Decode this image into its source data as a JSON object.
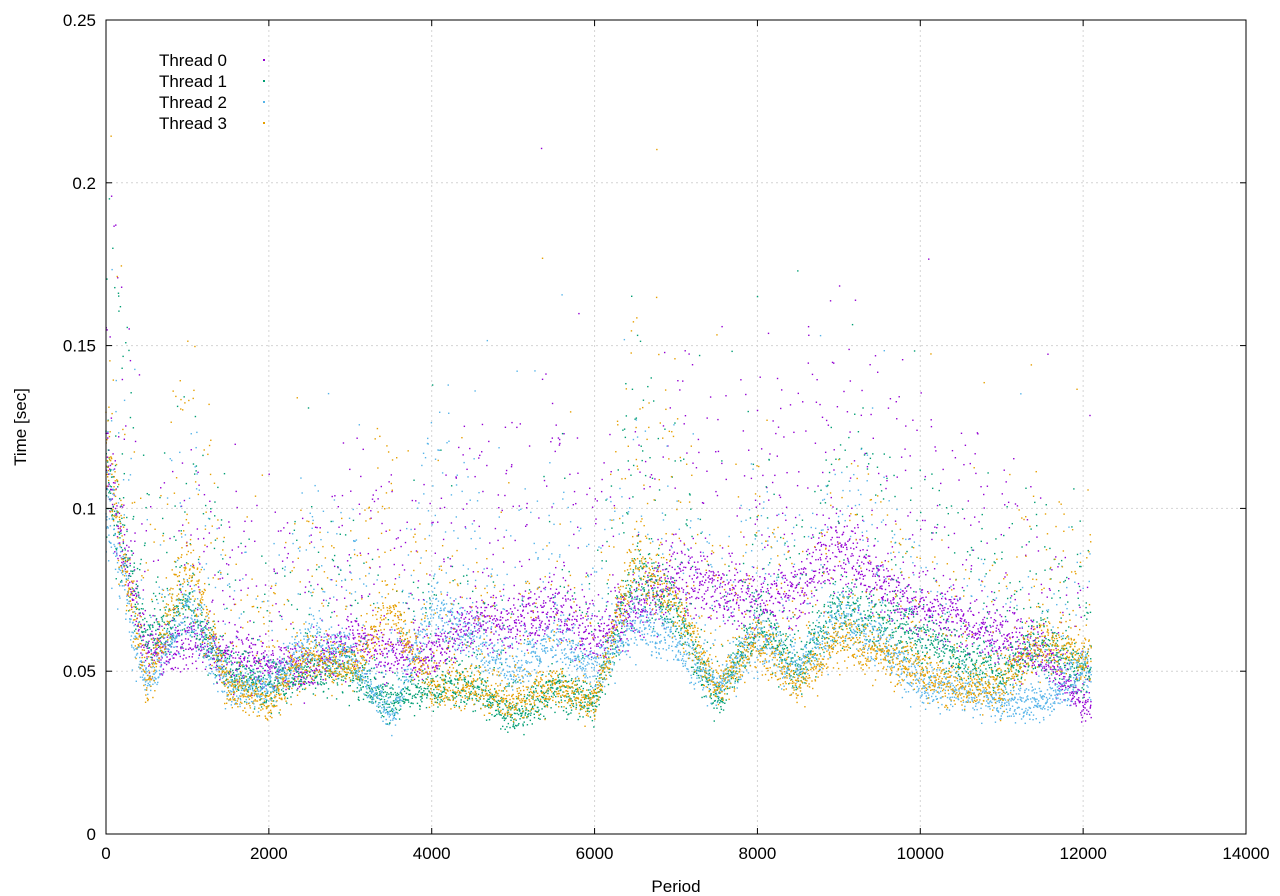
{
  "chart_data": {
    "type": "scatter",
    "title": "",
    "xlabel": "Period",
    "ylabel": "Time [sec]",
    "xlim": [
      0,
      14000
    ],
    "ylim": [
      0,
      0.25
    ],
    "x_ticks": [
      {
        "value": 0,
        "label": "0"
      },
      {
        "value": 2000,
        "label": "2000"
      },
      {
        "value": 4000,
        "label": "4000"
      },
      {
        "value": 6000,
        "label": "6000"
      },
      {
        "value": 8000,
        "label": "8000"
      },
      {
        "value": 10000,
        "label": "10000"
      },
      {
        "value": 12000,
        "label": "12000"
      },
      {
        "value": 14000,
        "label": "14000"
      }
    ],
    "y_ticks": [
      {
        "value": 0,
        "label": "0"
      },
      {
        "value": 0.05,
        "label": "0.05"
      },
      {
        "value": 0.1,
        "label": "0.1"
      },
      {
        "value": 0.15,
        "label": "0.15"
      },
      {
        "value": 0.2,
        "label": "0.2"
      },
      {
        "value": 0.25,
        "label": "0.25"
      }
    ],
    "grid": true,
    "legend_position": "top-left",
    "x_range_observed": [
      0,
      12100
    ],
    "series": [
      {
        "name": "Thread 0",
        "color": "#9400d3",
        "x": [
          0,
          500,
          1000,
          1500,
          2000,
          2500,
          3000,
          3500,
          4000,
          4500,
          5000,
          5500,
          6000,
          6500,
          7000,
          7500,
          8000,
          8500,
          9000,
          9500,
          10000,
          10500,
          11000,
          11500,
          12000
        ],
        "y": [
          0.115,
          0.055,
          0.06,
          0.055,
          0.052,
          0.05,
          0.06,
          0.055,
          0.055,
          0.065,
          0.065,
          0.07,
          0.06,
          0.07,
          0.08,
          0.075,
          0.07,
          0.075,
          0.09,
          0.075,
          0.07,
          0.065,
          0.06,
          0.055,
          0.04
        ]
      },
      {
        "name": "Thread 1",
        "color": "#009e73",
        "x": [
          0,
          500,
          1000,
          1500,
          2000,
          2500,
          3000,
          3500,
          4000,
          4500,
          5000,
          5500,
          6000,
          6500,
          7000,
          7500,
          8000,
          8500,
          9000,
          9500,
          10000,
          10500,
          11000,
          11500,
          12000
        ],
        "y": [
          0.11,
          0.06,
          0.07,
          0.05,
          0.045,
          0.05,
          0.05,
          0.04,
          0.045,
          0.045,
          0.035,
          0.045,
          0.04,
          0.08,
          0.07,
          0.04,
          0.065,
          0.05,
          0.07,
          0.065,
          0.06,
          0.055,
          0.05,
          0.06,
          0.05
        ]
      },
      {
        "name": "Thread 2",
        "color": "#56b4e9",
        "x": [
          0,
          500,
          1000,
          1500,
          2000,
          2500,
          3000,
          3500,
          4000,
          4500,
          5000,
          5500,
          6000,
          6500,
          7000,
          7500,
          8000,
          8500,
          9000,
          9500,
          10000,
          10500,
          11000,
          11500,
          12000
        ],
        "y": [
          0.1,
          0.045,
          0.07,
          0.045,
          0.045,
          0.06,
          0.055,
          0.035,
          0.07,
          0.06,
          0.05,
          0.06,
          0.05,
          0.065,
          0.06,
          0.045,
          0.06,
          0.05,
          0.065,
          0.06,
          0.045,
          0.045,
          0.04,
          0.04,
          0.05
        ]
      },
      {
        "name": "Thread 3",
        "color": "#e69f00",
        "x": [
          0,
          500,
          1000,
          1500,
          2000,
          2500,
          3000,
          3500,
          4000,
          4500,
          5000,
          5500,
          6000,
          6500,
          7000,
          7500,
          8000,
          8500,
          9000,
          9500,
          10000,
          10500,
          11000,
          11500,
          12000
        ],
        "y": [
          0.12,
          0.045,
          0.085,
          0.045,
          0.04,
          0.055,
          0.05,
          0.07,
          0.045,
          0.045,
          0.04,
          0.045,
          0.04,
          0.085,
          0.07,
          0.045,
          0.06,
          0.045,
          0.06,
          0.055,
          0.05,
          0.045,
          0.045,
          0.06,
          0.055
        ]
      }
    ]
  }
}
